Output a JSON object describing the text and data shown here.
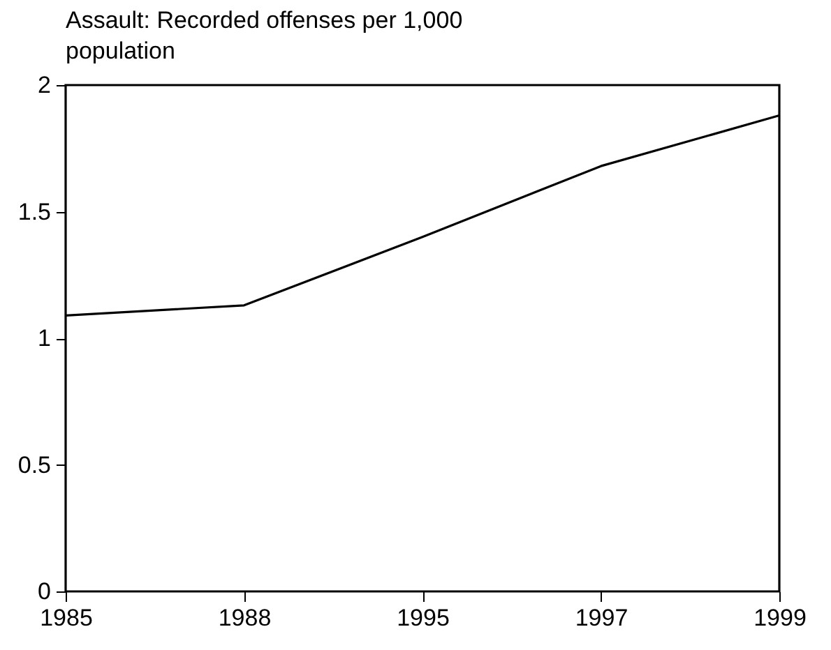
{
  "chart_data": {
    "type": "line",
    "title": "Assault: Recorded offenses per 1,000 population",
    "categories": [
      "1985",
      "1988",
      "1995",
      "1997",
      "1999"
    ],
    "series": [
      {
        "color": "#000000",
        "values": [
          1.09,
          1.13,
          1.4,
          1.68,
          1.88
        ]
      }
    ],
    "ylim": [
      0,
      2
    ],
    "yticks": [
      0,
      0.5,
      1,
      1.5,
      2
    ],
    "grid": false,
    "legend": false,
    "marker": "none",
    "line_style": "solid"
  }
}
